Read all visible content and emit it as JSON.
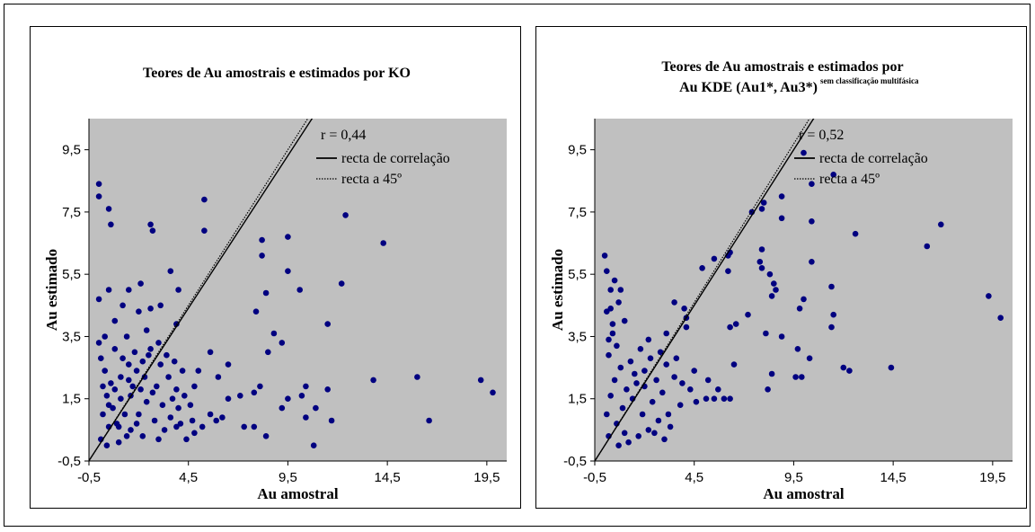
{
  "chart_data": [
    {
      "type": "scatter",
      "title_lines": [
        "Teores de Au amostrais e estimados por KO"
      ],
      "title_superscript": "",
      "xlabel": "Au amostral",
      "ylabel": "Au estimado",
      "xlim": [
        -0.5,
        20.5
      ],
      "ylim": [
        -0.5,
        10.5
      ],
      "xticks": [
        "-0,5",
        "4,5",
        "9,5",
        "14,5",
        "19,5"
      ],
      "yticks": [
        "-0,5",
        "1,5",
        "3,5",
        "5,5",
        "7,5",
        "9,5"
      ],
      "x_tick_values": [
        -0.5,
        4.5,
        9.5,
        14.5,
        19.5
      ],
      "y_tick_values": [
        -0.5,
        1.5,
        3.5,
        5.5,
        7.5,
        9.5
      ],
      "r_label": "r = 0,44",
      "legend": [
        "recta de correlação",
        "recta a 45º"
      ],
      "legend_position": "top-center",
      "background": "#c0c0c0",
      "point_color": "#000080",
      "correlation_line": {
        "slope": 0.98,
        "intercept": 0.0
      },
      "reference_line": {
        "slope": 1.0,
        "intercept": 0.0
      },
      "points": [
        [
          0.0,
          8.4
        ],
        [
          0.0,
          8.0
        ],
        [
          0.5,
          7.6
        ],
        [
          0.6,
          7.1
        ],
        [
          2.6,
          7.1
        ],
        [
          2.7,
          6.9
        ],
        [
          5.3,
          7.9
        ],
        [
          5.3,
          6.9
        ],
        [
          12.4,
          7.4
        ],
        [
          14.3,
          6.5
        ],
        [
          8.2,
          6.6
        ],
        [
          9.5,
          6.7
        ],
        [
          8.2,
          6.1
        ],
        [
          9.5,
          5.6
        ],
        [
          8.4,
          4.9
        ],
        [
          10.1,
          5.0
        ],
        [
          12.2,
          5.2
        ],
        [
          7.9,
          4.3
        ],
        [
          9.2,
          3.3
        ],
        [
          8.8,
          3.6
        ],
        [
          11.5,
          3.9
        ],
        [
          8.5,
          3.0
        ],
        [
          3.6,
          5.6
        ],
        [
          4.0,
          5.0
        ],
        [
          2.1,
          5.2
        ],
        [
          1.5,
          5.0
        ],
        [
          0.5,
          5.0
        ],
        [
          1.2,
          4.5
        ],
        [
          0.0,
          4.7
        ],
        [
          2.0,
          4.3
        ],
        [
          2.6,
          4.4
        ],
        [
          3.1,
          4.5
        ],
        [
          0.8,
          4.0
        ],
        [
          3.9,
          3.9
        ],
        [
          2.4,
          3.7
        ],
        [
          1.4,
          3.5
        ],
        [
          0.3,
          3.5
        ],
        [
          0.0,
          3.3
        ],
        [
          5.6,
          3.0
        ],
        [
          6.5,
          2.6
        ],
        [
          5.0,
          2.4
        ],
        [
          6.0,
          2.2
        ],
        [
          4.8,
          1.9
        ],
        [
          6.5,
          1.5
        ],
        [
          7.1,
          1.6
        ],
        [
          7.8,
          1.7
        ],
        [
          8.1,
          1.9
        ],
        [
          9.5,
          1.5
        ],
        [
          10.2,
          1.6
        ],
        [
          10.4,
          1.9
        ],
        [
          11.5,
          1.8
        ],
        [
          9.2,
          1.2
        ],
        [
          10.4,
          0.9
        ],
        [
          11.7,
          0.8
        ],
        [
          10.9,
          1.2
        ],
        [
          7.8,
          0.6
        ],
        [
          7.3,
          0.6
        ],
        [
          8.4,
          0.3
        ],
        [
          10.8,
          0.0
        ],
        [
          16.0,
          2.2
        ],
        [
          16.6,
          0.8
        ],
        [
          19.2,
          2.1
        ],
        [
          19.8,
          1.7
        ],
        [
          13.8,
          2.1
        ],
        [
          4.6,
          1.3
        ],
        [
          4.7,
          0.8
        ],
        [
          5.6,
          1.0
        ],
        [
          5.9,
          0.8
        ],
        [
          6.2,
          0.9
        ],
        [
          5.2,
          0.6
        ],
        [
          4.8,
          0.4
        ],
        [
          3.9,
          0.6
        ],
        [
          3.0,
          0.2
        ],
        [
          2.2,
          0.3
        ],
        [
          1.6,
          0.5
        ],
        [
          1.0,
          0.1
        ],
        [
          0.4,
          0.0
        ],
        [
          0.1,
          0.2
        ],
        [
          0.2,
          1.0
        ],
        [
          0.5,
          1.3
        ],
        [
          0.8,
          1.8
        ],
        [
          1.1,
          2.2
        ],
        [
          1.5,
          2.6
        ],
        [
          1.8,
          3.0
        ],
        [
          2.2,
          2.7
        ],
        [
          2.6,
          3.1
        ],
        [
          3.1,
          2.6
        ],
        [
          3.5,
          2.2
        ],
        [
          3.9,
          1.8
        ],
        [
          4.2,
          2.4
        ],
        [
          2.9,
          1.9
        ],
        [
          2.4,
          1.4
        ],
        [
          2.0,
          1.0
        ],
        [
          1.6,
          1.6
        ],
        [
          1.3,
          1.0
        ],
        [
          0.9,
          0.7
        ],
        [
          0.6,
          2.0
        ],
        [
          0.3,
          2.4
        ],
        [
          0.1,
          2.8
        ],
        [
          0.4,
          1.6
        ],
        [
          0.7,
          1.2
        ],
        [
          1.0,
          0.6
        ],
        [
          1.4,
          0.3
        ],
        [
          1.9,
          0.7
        ],
        [
          2.3,
          2.2
        ],
        [
          2.7,
          1.7
        ],
        [
          3.2,
          1.3
        ],
        [
          3.6,
          0.9
        ],
        [
          4.0,
          1.2
        ],
        [
          4.4,
          0.2
        ],
        [
          3.3,
          0.5
        ],
        [
          2.8,
          0.8
        ],
        [
          1.7,
          1.9
        ],
        [
          1.2,
          2.8
        ],
        [
          0.8,
          3.1
        ],
        [
          0.2,
          1.9
        ],
        [
          0.5,
          0.6
        ],
        [
          1.1,
          1.5
        ],
        [
          1.9,
          2.4
        ],
        [
          2.5,
          2.9
        ],
        [
          3.0,
          3.3
        ],
        [
          3.4,
          2.9
        ],
        [
          3.8,
          2.7
        ],
        [
          4.3,
          1.6
        ],
        [
          4.1,
          0.7
        ],
        [
          3.7,
          1.5
        ],
        [
          2.1,
          1.8
        ],
        [
          1.5,
          2.1
        ]
      ]
    },
    {
      "type": "scatter",
      "title_lines": [
        "Teores de Au amostrais e estimados por",
        "Au KDE (Au1*, Au3*)"
      ],
      "title_superscript": "sem classificação multifásica",
      "xlabel": "Au amostral",
      "ylabel": "Au estimado",
      "xlim": [
        -0.5,
        20.5
      ],
      "ylim": [
        -0.5,
        10.5
      ],
      "xticks": [
        "-0,5",
        "4,5",
        "9,5",
        "14,5",
        "19,5"
      ],
      "yticks": [
        "-0,5",
        "1,5",
        "3,5",
        "5,5",
        "7,5",
        "9,5"
      ],
      "x_tick_values": [
        -0.5,
        4.5,
        9.5,
        14.5,
        19.5
      ],
      "y_tick_values": [
        -0.5,
        1.5,
        3.5,
        5.5,
        7.5,
        9.5
      ],
      "r_label": "r = 0,52",
      "legend": [
        "recta de correlação",
        "recta a 45º"
      ],
      "legend_position": "top-center",
      "background": "#c0c0c0",
      "point_color": "#000080",
      "correlation_line": {
        "slope": 1.0,
        "intercept": 0.0
      },
      "reference_line": {
        "slope": 1.02,
        "intercept": 0.0
      },
      "points": [
        [
          10.0,
          9.4
        ],
        [
          11.5,
          8.7
        ],
        [
          10.4,
          8.4
        ],
        [
          8.9,
          8.0
        ],
        [
          7.4,
          7.5
        ],
        [
          8.0,
          7.8
        ],
        [
          7.9,
          7.6
        ],
        [
          8.9,
          7.3
        ],
        [
          10.4,
          7.2
        ],
        [
          12.6,
          6.8
        ],
        [
          16.9,
          7.1
        ],
        [
          16.2,
          6.4
        ],
        [
          7.9,
          6.3
        ],
        [
          6.3,
          6.2
        ],
        [
          6.2,
          6.1
        ],
        [
          5.5,
          6.0
        ],
        [
          7.8,
          5.9
        ],
        [
          10.4,
          5.9
        ],
        [
          4.9,
          5.7
        ],
        [
          6.2,
          5.6
        ],
        [
          7.9,
          5.7
        ],
        [
          8.3,
          5.5
        ],
        [
          8.5,
          5.2
        ],
        [
          8.6,
          5.0
        ],
        [
          8.4,
          4.8
        ],
        [
          10.0,
          4.7
        ],
        [
          11.4,
          5.1
        ],
        [
          19.3,
          4.8
        ],
        [
          19.9,
          4.1
        ],
        [
          11.5,
          4.2
        ],
        [
          11.4,
          3.8
        ],
        [
          9.8,
          4.4
        ],
        [
          7.2,
          4.2
        ],
        [
          6.6,
          3.9
        ],
        [
          6.3,
          3.8
        ],
        [
          8.1,
          3.6
        ],
        [
          8.9,
          3.5
        ],
        [
          9.7,
          3.1
        ],
        [
          10.3,
          2.8
        ],
        [
          12.0,
          2.5
        ],
        [
          12.3,
          2.4
        ],
        [
          14.4,
          2.5
        ],
        [
          9.6,
          2.2
        ],
        [
          9.9,
          2.2
        ],
        [
          8.4,
          2.3
        ],
        [
          8.2,
          1.8
        ],
        [
          6.3,
          1.5
        ],
        [
          6.0,
          1.5
        ],
        [
          5.5,
          1.5
        ],
        [
          5.1,
          1.5
        ],
        [
          4.6,
          1.4
        ],
        [
          3.5,
          4.6
        ],
        [
          4.0,
          4.4
        ],
        [
          4.1,
          4.1
        ],
        [
          4.1,
          3.8
        ],
        [
          3.1,
          3.6
        ],
        [
          2.2,
          3.4
        ],
        [
          1.8,
          3.1
        ],
        [
          0.0,
          6.1
        ],
        [
          0.1,
          5.6
        ],
        [
          0.5,
          5.3
        ],
        [
          0.3,
          5.0
        ],
        [
          0.8,
          5.0
        ],
        [
          0.1,
          4.3
        ],
        [
          1.0,
          4.0
        ],
        [
          0.4,
          3.6
        ],
        [
          0.6,
          3.2
        ],
        [
          1.3,
          2.7
        ],
        [
          2.0,
          2.4
        ],
        [
          2.6,
          2.1
        ],
        [
          3.1,
          2.6
        ],
        [
          3.5,
          2.2
        ],
        [
          3.9,
          2.0
        ],
        [
          4.3,
          1.8
        ],
        [
          3.8,
          1.3
        ],
        [
          3.2,
          1.0
        ],
        [
          2.7,
          0.8
        ],
        [
          2.2,
          0.5
        ],
        [
          1.7,
          0.3
        ],
        [
          1.2,
          0.1
        ],
        [
          0.7,
          0.0
        ],
        [
          0.2,
          0.3
        ],
        [
          0.1,
          1.0
        ],
        [
          0.3,
          1.6
        ],
        [
          0.5,
          2.1
        ],
        [
          0.8,
          2.5
        ],
        [
          0.2,
          2.9
        ],
        [
          0.4,
          3.9
        ],
        [
          0.9,
          1.2
        ],
        [
          1.4,
          1.5
        ],
        [
          1.9,
          1.0
        ],
        [
          2.4,
          1.4
        ],
        [
          2.9,
          1.7
        ],
        [
          3.3,
          0.6
        ],
        [
          1.6,
          2.0
        ],
        [
          1.1,
          1.8
        ],
        [
          0.6,
          0.7
        ],
        [
          1.0,
          0.4
        ],
        [
          2.0,
          1.9
        ],
        [
          2.5,
          0.4
        ],
        [
          3.0,
          0.2
        ],
        [
          0.3,
          4.4
        ],
        [
          0.7,
          4.6
        ],
        [
          0.2,
          3.4
        ],
        [
          1.5,
          2.3
        ],
        [
          2.3,
          2.8
        ],
        [
          2.8,
          3.0
        ],
        [
          3.6,
          2.8
        ],
        [
          4.5,
          2.4
        ],
        [
          5.2,
          2.1
        ],
        [
          5.7,
          1.8
        ],
        [
          6.5,
          2.6
        ]
      ]
    }
  ]
}
